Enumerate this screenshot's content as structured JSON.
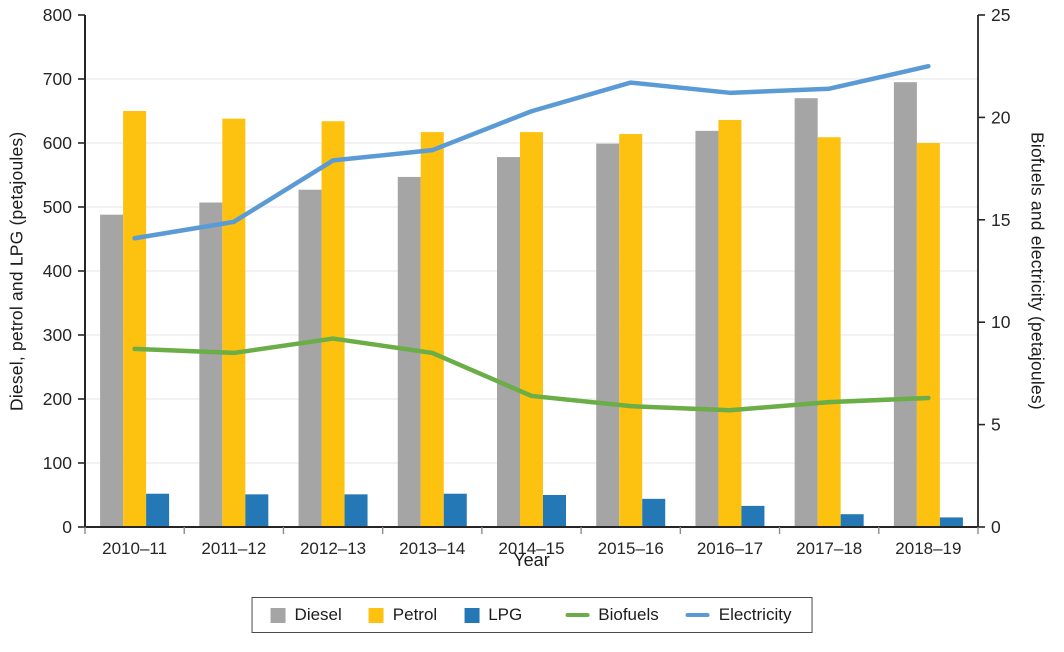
{
  "chart_data": {
    "type": "combo-bar-line",
    "title": "",
    "xlabel": "Year",
    "categories": [
      "2010–11",
      "2011–12",
      "2012–13",
      "2013–14",
      "2014–15",
      "2015–16",
      "2016–17",
      "2017–18",
      "2018–19"
    ],
    "left_axis": {
      "label": "Diesel, petrol and LPG (petajoules)",
      "min": 0,
      "max": 800,
      "ticks": [
        0,
        100,
        200,
        300,
        400,
        500,
        600,
        700,
        800
      ]
    },
    "right_axis": {
      "label": "Biofuels and electricity (petajoules)",
      "min": 0,
      "max": 25,
      "ticks": [
        0,
        5,
        10,
        15,
        20,
        25
      ]
    },
    "grid": true,
    "legend_position": "bottom",
    "bar_series": [
      {
        "name": "Diesel",
        "color": "#a5a5a5",
        "axis": "left",
        "values": [
          488,
          507,
          527,
          547,
          578,
          599,
          619,
          670,
          695
        ]
      },
      {
        "name": "Petrol",
        "color": "#fdc110",
        "axis": "left",
        "values": [
          650,
          638,
          634,
          617,
          617,
          614,
          636,
          609,
          600
        ]
      },
      {
        "name": "LPG",
        "color": "#2478b6",
        "axis": "left",
        "values": [
          52,
          51,
          51,
          52,
          50,
          44,
          33,
          20,
          15
        ]
      }
    ],
    "line_series": [
      {
        "name": "Biofuels",
        "color": "#6bad47",
        "axis": "right",
        "values": [
          8.7,
          8.5,
          9.2,
          8.5,
          6.4,
          5.9,
          5.7,
          6.1,
          6.3
        ]
      },
      {
        "name": "Electricity",
        "color": "#5b9bd5",
        "axis": "right",
        "values": [
          14.1,
          14.9,
          17.9,
          18.4,
          20.3,
          21.7,
          21.2,
          21.4,
          22.5
        ]
      }
    ],
    "colors": {
      "gridline": "#e9e9e9",
      "axis": "#262626",
      "legend_border": "#4c4c4c"
    }
  }
}
